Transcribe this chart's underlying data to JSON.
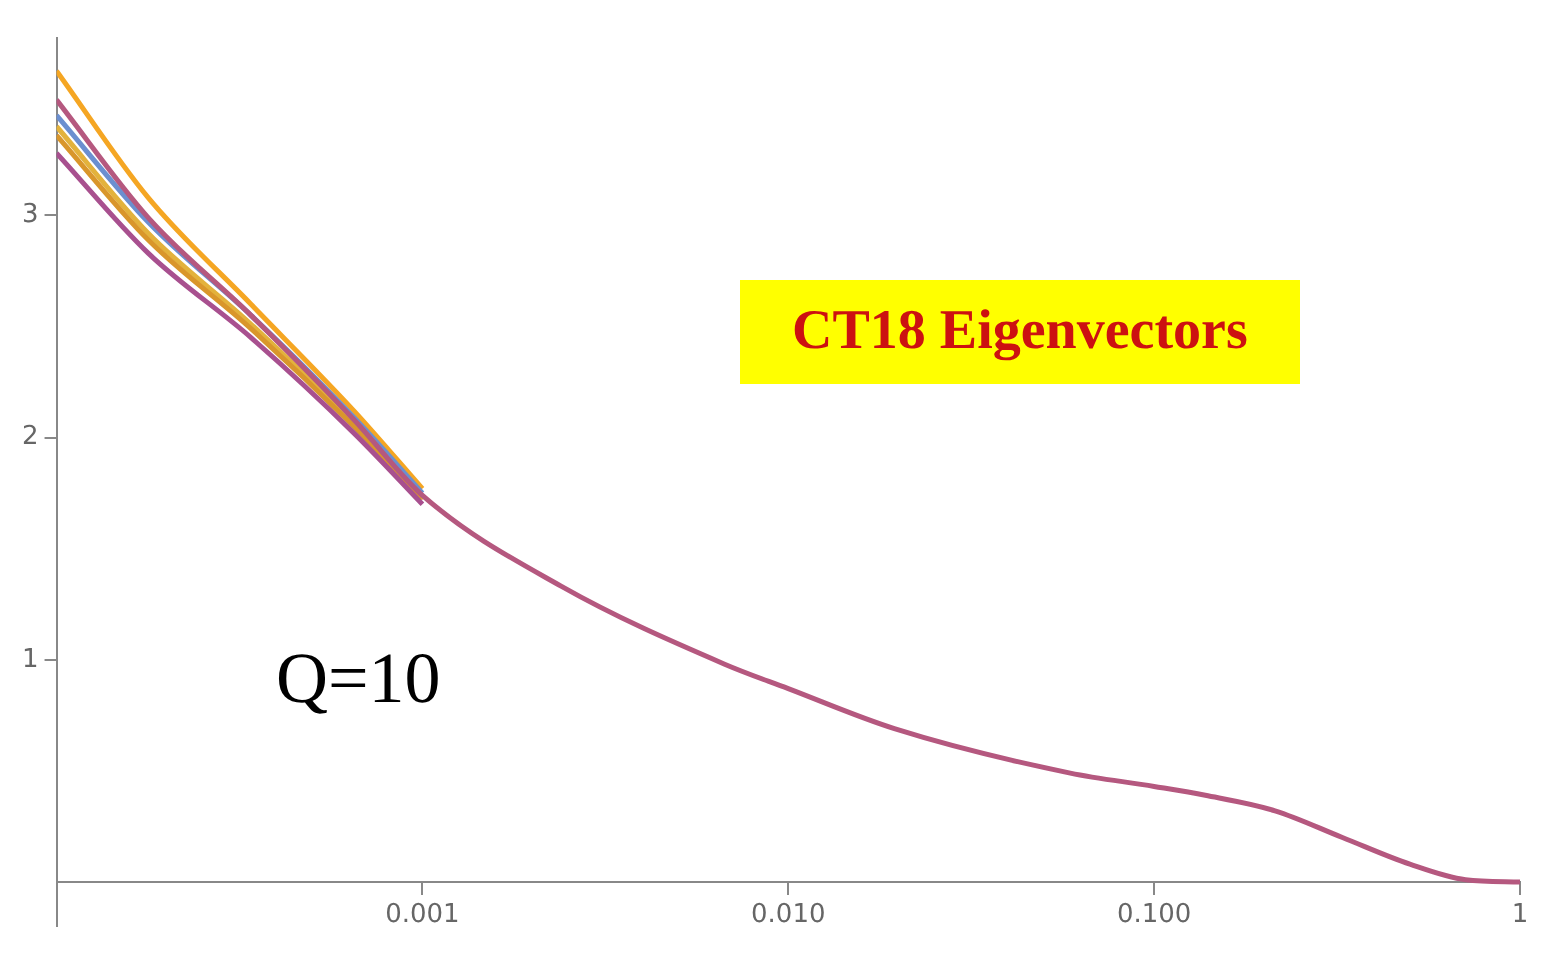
{
  "chart_data": {
    "type": "line",
    "x": [
      0.0001,
      0.000178,
      0.00034,
      0.00065,
      0.001,
      0.0024,
      0.0067,
      0.01,
      0.0195,
      0.059,
      0.1,
      0.138,
      0.214,
      0.327,
      0.5,
      0.71,
      1
    ],
    "series": [
      {
        "color": "#f5a623",
        "values": [
          3.65,
          3.08,
          2.6,
          2.12,
          1.77,
          null,
          null,
          null,
          null,
          null,
          null,
          null,
          null,
          null,
          null,
          null,
          null
        ]
      },
      {
        "color": "#e3b23c",
        "values": [
          3.4,
          2.92,
          2.51,
          2.06,
          1.72,
          null,
          null,
          null,
          null,
          null,
          null,
          null,
          null,
          null,
          null,
          null,
          null
        ]
      },
      {
        "color": "#d9962b",
        "values": [
          3.36,
          2.89,
          2.49,
          2.05,
          1.73,
          null,
          null,
          null,
          null,
          null,
          null,
          null,
          null,
          null,
          null,
          null,
          null
        ]
      },
      {
        "color": "#6b8fd0",
        "values": [
          3.45,
          2.97,
          2.55,
          2.09,
          1.75,
          null,
          null,
          null,
          null,
          null,
          null,
          null,
          null,
          null,
          null,
          null,
          null
        ]
      },
      {
        "color": "#a8508f",
        "values": [
          3.28,
          2.83,
          2.45,
          2.02,
          1.7,
          null,
          null,
          null,
          null,
          null,
          null,
          null,
          null,
          null,
          null,
          null,
          null
        ]
      },
      {
        "color": "#b5587f",
        "values": [
          3.52,
          2.99,
          2.55,
          2.08,
          1.74,
          1.33,
          0.98,
          0.87,
          0.69,
          0.49,
          0.43,
          0.39,
          0.32,
          0.2,
          0.08,
          0.01,
          0
        ]
      }
    ],
    "xlim": [
      0.0001,
      1
    ],
    "ylim": [
      -0.2,
      3.8
    ],
    "log": "x",
    "xticks": [
      {
        "value": 0.001,
        "label": "0.001"
      },
      {
        "value": 0.01,
        "label": "0.010"
      },
      {
        "value": 0.1,
        "label": "0.100"
      },
      1
    ],
    "yticks": [
      1,
      2,
      3
    ],
    "grid": false,
    "legend": false,
    "marker": "none",
    "line_style": "solid",
    "annotations": [
      "CT18 Eigenvectors",
      "Q=10"
    ]
  }
}
